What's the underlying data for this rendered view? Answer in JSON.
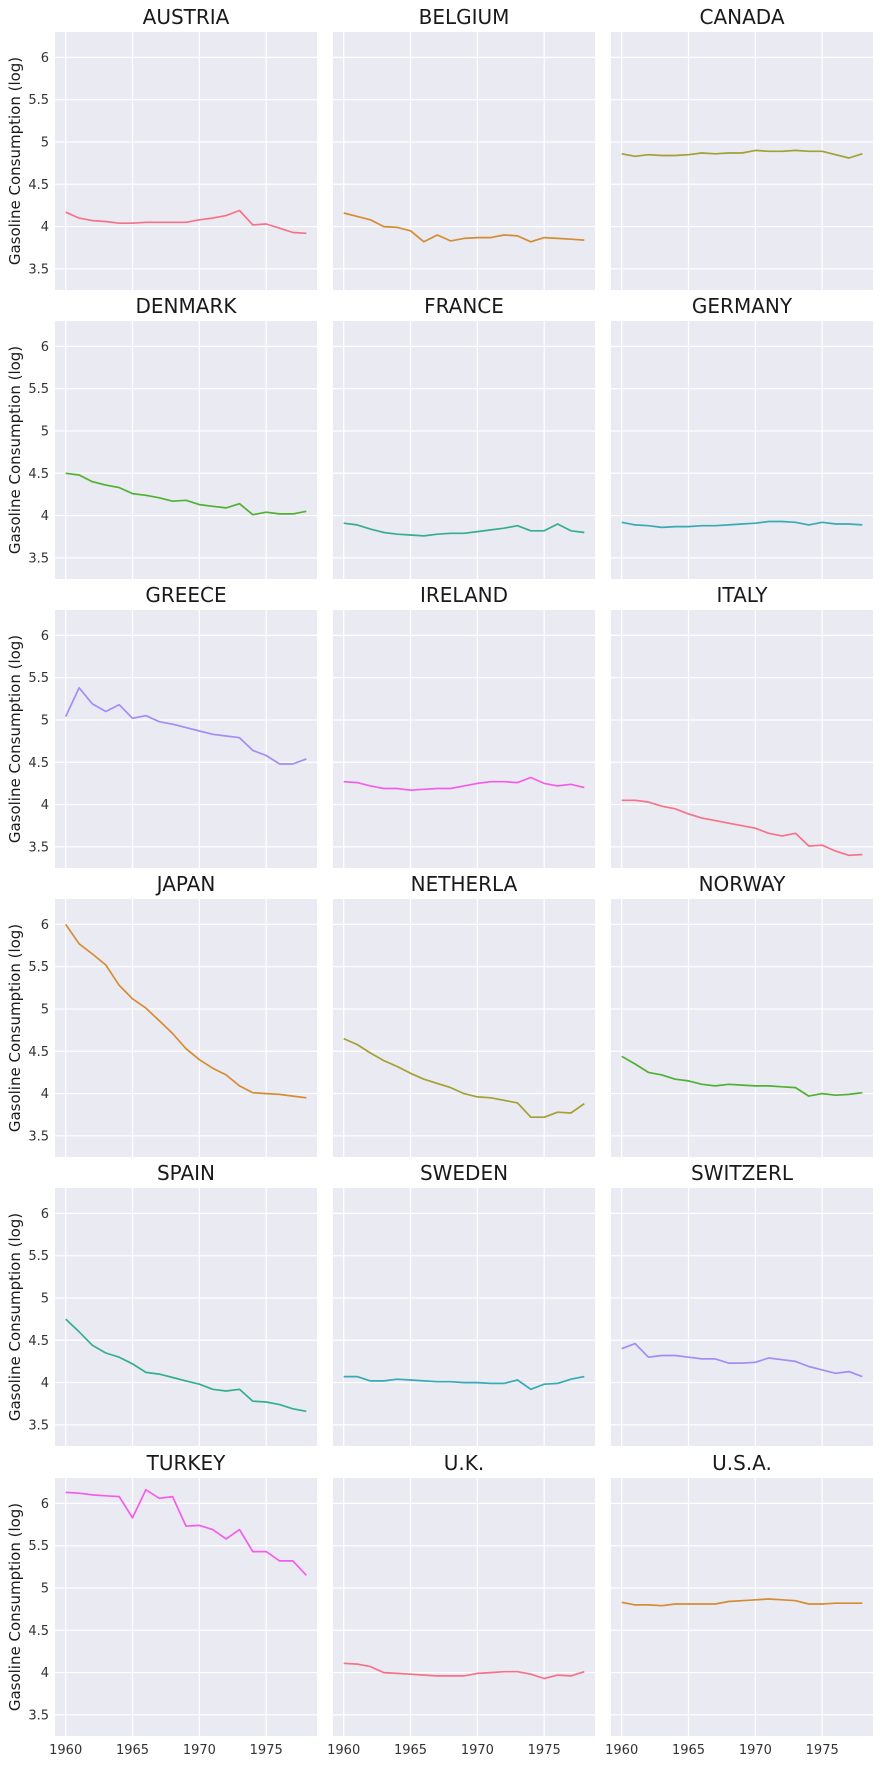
{
  "chart_data": {
    "type": "line",
    "layout": "facet-grid",
    "ylabel": "Gasoline Consumption (log)",
    "ylim": [
      3.25,
      6.3
    ],
    "xlim": [
      1959.2,
      1978.8
    ],
    "yticks": [
      3.5,
      4.0,
      4.5,
      5.0,
      5.5,
      6.0
    ],
    "xticks": [
      1960,
      1965,
      1970,
      1975
    ],
    "grid": true,
    "x": [
      1960,
      1961,
      1962,
      1963,
      1964,
      1965,
      1966,
      1967,
      1968,
      1969,
      1970,
      1971,
      1972,
      1973,
      1974,
      1975,
      1976,
      1977,
      1978
    ],
    "series": [
      {
        "name": "AUSTRIA",
        "color": "#f77189",
        "values": [
          4.17,
          4.1,
          4.07,
          4.06,
          4.04,
          4.04,
          4.05,
          4.05,
          4.05,
          4.05,
          4.08,
          4.1,
          4.13,
          4.19,
          4.02,
          4.03,
          3.98,
          3.93,
          3.92
        ]
      },
      {
        "name": "BELGIUM",
        "color": "#d58c32",
        "values": [
          4.16,
          4.12,
          4.08,
          4.0,
          3.99,
          3.95,
          3.82,
          3.9,
          3.83,
          3.86,
          3.87,
          3.87,
          3.9,
          3.89,
          3.82,
          3.87,
          3.86,
          3.85,
          3.84
        ]
      },
      {
        "name": "CANADA",
        "color": "#a4a031",
        "values": [
          4.86,
          4.83,
          4.85,
          4.84,
          4.84,
          4.85,
          4.87,
          4.86,
          4.87,
          4.87,
          4.9,
          4.89,
          4.89,
          4.9,
          4.89,
          4.89,
          4.85,
          4.81,
          4.86
        ]
      },
      {
        "name": "DENMARK",
        "color": "#50b131",
        "values": [
          4.5,
          4.48,
          4.4,
          4.36,
          4.33,
          4.26,
          4.24,
          4.21,
          4.17,
          4.18,
          4.13,
          4.11,
          4.09,
          4.14,
          4.01,
          4.04,
          4.02,
          4.02,
          4.05
        ]
      },
      {
        "name": "FRANCE",
        "color": "#34ae91",
        "values": [
          3.91,
          3.89,
          3.84,
          3.8,
          3.78,
          3.77,
          3.76,
          3.78,
          3.79,
          3.79,
          3.81,
          3.83,
          3.85,
          3.88,
          3.82,
          3.82,
          3.9,
          3.82,
          3.8
        ]
      },
      {
        "name": "GERMANY",
        "color": "#37abb5",
        "values": [
          3.92,
          3.89,
          3.88,
          3.86,
          3.87,
          3.87,
          3.88,
          3.88,
          3.89,
          3.9,
          3.91,
          3.93,
          3.93,
          3.92,
          3.89,
          3.92,
          3.9,
          3.9,
          3.89
        ]
      },
      {
        "name": "GREECE",
        "color": "#a48cf4",
        "values": [
          5.04,
          5.38,
          5.19,
          5.1,
          5.18,
          5.02,
          5.05,
          4.98,
          4.95,
          4.91,
          4.87,
          4.83,
          4.81,
          4.79,
          4.64,
          4.58,
          4.48,
          4.48,
          4.54
        ]
      },
      {
        "name": "IRELAND",
        "color": "#f45deb",
        "values": [
          4.27,
          4.26,
          4.22,
          4.19,
          4.19,
          4.17,
          4.18,
          4.19,
          4.19,
          4.22,
          4.25,
          4.27,
          4.27,
          4.26,
          4.32,
          4.25,
          4.22,
          4.24,
          4.2
        ]
      },
      {
        "name": "ITALY",
        "color": "#f77189",
        "values": [
          4.05,
          4.05,
          4.03,
          3.98,
          3.95,
          3.89,
          3.84,
          3.81,
          3.78,
          3.75,
          3.72,
          3.66,
          3.63,
          3.66,
          3.51,
          3.52,
          3.45,
          3.4,
          3.41
        ]
      },
      {
        "name": "JAPAN",
        "color": "#d58c32",
        "values": [
          6.0,
          5.77,
          5.65,
          5.52,
          5.28,
          5.12,
          5.01,
          4.86,
          4.71,
          4.53,
          4.4,
          4.3,
          4.22,
          4.09,
          4.01,
          4.0,
          3.99,
          3.97,
          3.95
        ]
      },
      {
        "name": "NETHERLA",
        "color": "#a4a031",
        "values": [
          4.65,
          4.58,
          4.48,
          4.39,
          4.32,
          4.24,
          4.17,
          4.12,
          4.07,
          4.0,
          3.96,
          3.95,
          3.92,
          3.89,
          3.72,
          3.72,
          3.78,
          3.77,
          3.88
        ]
      },
      {
        "name": "NORWAY",
        "color": "#50b131",
        "values": [
          4.44,
          4.35,
          4.25,
          4.22,
          4.17,
          4.15,
          4.11,
          4.09,
          4.11,
          4.1,
          4.09,
          4.09,
          4.08,
          4.07,
          3.97,
          4.0,
          3.98,
          3.99,
          4.01
        ]
      },
      {
        "name": "SPAIN",
        "color": "#34ae91",
        "values": [
          4.75,
          4.6,
          4.44,
          4.35,
          4.3,
          4.22,
          4.12,
          4.1,
          4.06,
          4.02,
          3.98,
          3.92,
          3.9,
          3.92,
          3.78,
          3.77,
          3.74,
          3.69,
          3.66
        ]
      },
      {
        "name": "SWEDEN",
        "color": "#37abb5",
        "values": [
          4.07,
          4.07,
          4.02,
          4.02,
          4.04,
          4.03,
          4.02,
          4.01,
          4.01,
          4.0,
          4.0,
          3.99,
          3.99,
          4.03,
          3.92,
          3.98,
          3.99,
          4.04,
          4.07
        ]
      },
      {
        "name": "SWITZERL",
        "color": "#a48cf4",
        "values": [
          4.4,
          4.46,
          4.3,
          4.32,
          4.32,
          4.3,
          4.28,
          4.28,
          4.23,
          4.23,
          4.24,
          4.29,
          4.27,
          4.25,
          4.19,
          4.15,
          4.11,
          4.13,
          4.07
        ]
      },
      {
        "name": "TURKEY",
        "color": "#f45deb",
        "values": [
          6.13,
          6.12,
          6.1,
          6.09,
          6.08,
          5.83,
          6.16,
          6.06,
          6.08,
          5.73,
          5.74,
          5.69,
          5.58,
          5.69,
          5.43,
          5.43,
          5.32,
          5.32,
          5.15
        ]
      },
      {
        "name": "U.K.",
        "color": "#f77189",
        "values": [
          4.11,
          4.1,
          4.07,
          4.0,
          3.99,
          3.98,
          3.97,
          3.96,
          3.96,
          3.96,
          3.99,
          4.0,
          4.01,
          4.01,
          3.98,
          3.93,
          3.97,
          3.96,
          4.01
        ]
      },
      {
        "name": "U.S.A.",
        "color": "#d58c32",
        "values": [
          4.83,
          4.8,
          4.8,
          4.79,
          4.81,
          4.81,
          4.81,
          4.81,
          4.84,
          4.85,
          4.86,
          4.87,
          4.86,
          4.85,
          4.81,
          4.81,
          4.82,
          4.82,
          4.82
        ]
      }
    ]
  }
}
